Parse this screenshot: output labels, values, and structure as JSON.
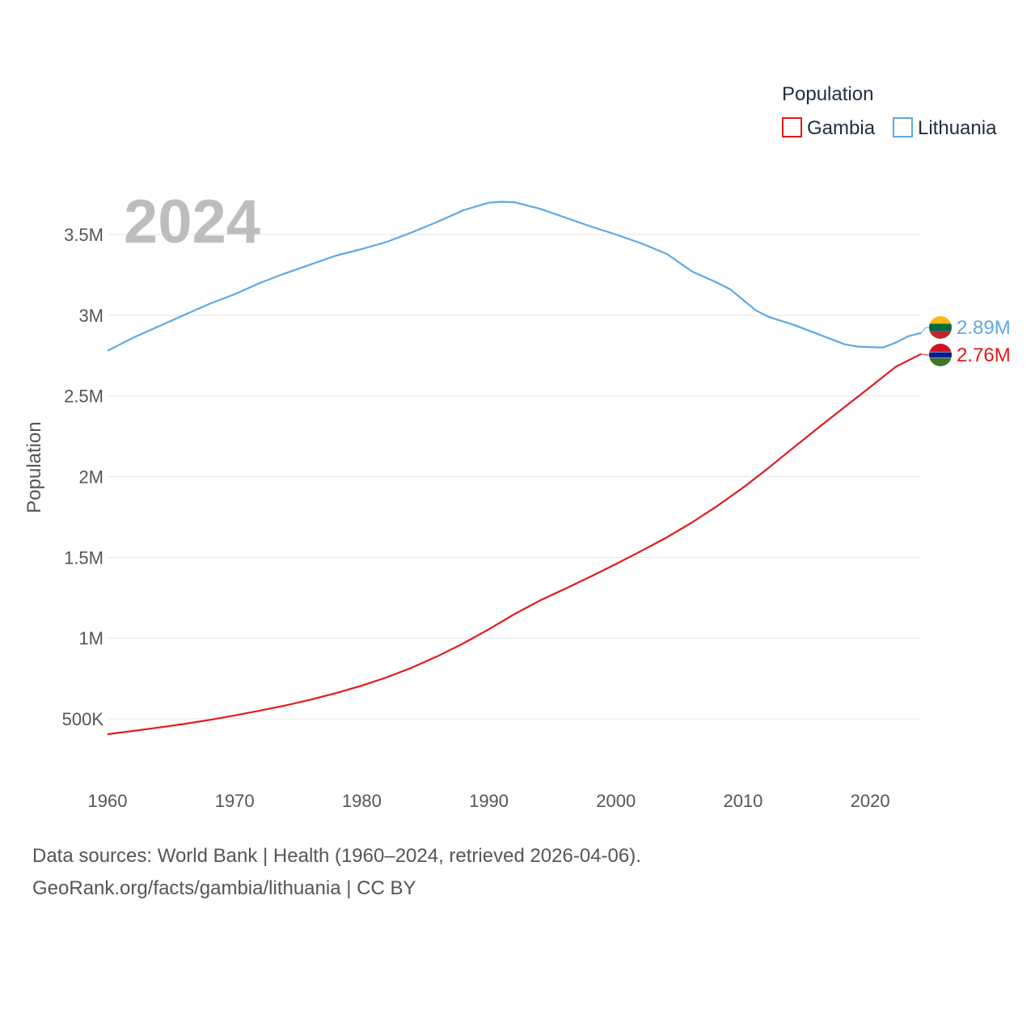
{
  "chart_data": {
    "type": "line",
    "title": "",
    "big_year": "2024",
    "ylabel": "Population",
    "xlabel": "",
    "xlim": [
      1960,
      2024
    ],
    "ylim": [
      200000,
      3850000
    ],
    "x_ticks": [
      1960,
      1970,
      1980,
      1990,
      2000,
      2010,
      2020
    ],
    "y_ticks": [
      {
        "value": 500000,
        "label": "500K"
      },
      {
        "value": 1000000,
        "label": "1M"
      },
      {
        "value": 1500000,
        "label": "1.5M"
      },
      {
        "value": 2000000,
        "label": "2M"
      },
      {
        "value": 2500000,
        "label": "2.5M"
      },
      {
        "value": 3000000,
        "label": "3M"
      },
      {
        "value": 3500000,
        "label": "3.5M"
      }
    ],
    "legend": {
      "title": "Population",
      "position": "top-right"
    },
    "series": [
      {
        "name": "Gambia",
        "color": "#e31a1c",
        "end_label": "2.76M",
        "flag": "gambia-flag",
        "points": [
          [
            1960,
            405000
          ],
          [
            1962,
            425000
          ],
          [
            1964,
            446000
          ],
          [
            1966,
            468000
          ],
          [
            1968,
            493000
          ],
          [
            1970,
            521000
          ],
          [
            1972,
            551000
          ],
          [
            1974,
            583000
          ],
          [
            1976,
            619000
          ],
          [
            1978,
            660000
          ],
          [
            1980,
            706000
          ],
          [
            1982,
            758000
          ],
          [
            1984,
            819000
          ],
          [
            1986,
            889000
          ],
          [
            1988,
            968000
          ],
          [
            1990,
            1055000
          ],
          [
            1992,
            1148000
          ],
          [
            1994,
            1232000
          ],
          [
            1996,
            1306000
          ],
          [
            1998,
            1381000
          ],
          [
            2000,
            1459000
          ],
          [
            2002,
            1540000
          ],
          [
            2004,
            1624000
          ],
          [
            2006,
            1717000
          ],
          [
            2008,
            1820000
          ],
          [
            2010,
            1932000
          ],
          [
            2012,
            2054000
          ],
          [
            2014,
            2182000
          ],
          [
            2016,
            2308000
          ],
          [
            2018,
            2432000
          ],
          [
            2020,
            2555000
          ],
          [
            2022,
            2680000
          ],
          [
            2024,
            2760000
          ]
        ]
      },
      {
        "name": "Lithuania",
        "color": "#5ea8e4",
        "end_label": "2.89M",
        "flag": "lithuania-flag",
        "points": [
          [
            1960,
            2780000
          ],
          [
            1962,
            2860000
          ],
          [
            1964,
            2930000
          ],
          [
            1966,
            3000000
          ],
          [
            1968,
            3070000
          ],
          [
            1970,
            3130000
          ],
          [
            1972,
            3200000
          ],
          [
            1974,
            3260000
          ],
          [
            1976,
            3315000
          ],
          [
            1978,
            3370000
          ],
          [
            1980,
            3410000
          ],
          [
            1982,
            3455000
          ],
          [
            1984,
            3515000
          ],
          [
            1986,
            3580000
          ],
          [
            1988,
            3650000
          ],
          [
            1990,
            3697000
          ],
          [
            1991,
            3703000
          ],
          [
            1992,
            3700000
          ],
          [
            1994,
            3660000
          ],
          [
            1996,
            3605000
          ],
          [
            1998,
            3550000
          ],
          [
            2000,
            3500000
          ],
          [
            2002,
            3445000
          ],
          [
            2004,
            3380000
          ],
          [
            2006,
            3270000
          ],
          [
            2008,
            3200000
          ],
          [
            2009,
            3160000
          ],
          [
            2011,
            3030000
          ],
          [
            2012,
            2990000
          ],
          [
            2014,
            2940000
          ],
          [
            2016,
            2880000
          ],
          [
            2018,
            2820000
          ],
          [
            2019,
            2806000
          ],
          [
            2021,
            2800000
          ],
          [
            2022,
            2830000
          ],
          [
            2023,
            2870000
          ],
          [
            2024,
            2890000
          ]
        ]
      }
    ]
  },
  "footer": {
    "sources": "Data sources: World Bank | Health (1960–2024, retrieved 2026-04-06).",
    "credit": "GeoRank.org/facts/gambia/lithuania | CC BY"
  }
}
